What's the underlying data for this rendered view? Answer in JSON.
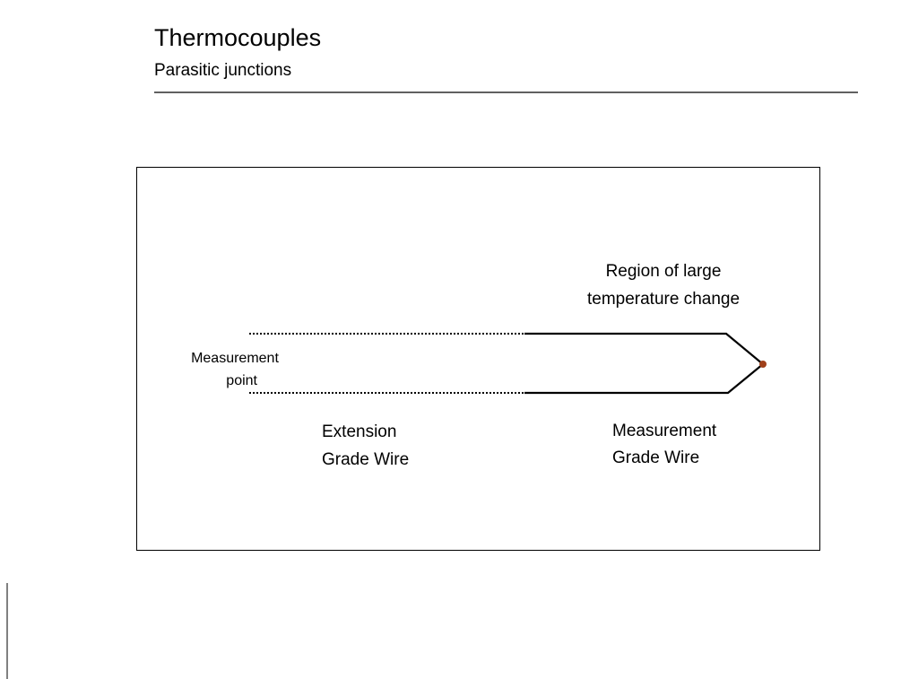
{
  "header": {
    "title": "Thermocouples",
    "subtitle": "Parasitic junctions"
  },
  "diagram": {
    "region_label": [
      "Region of large",
      "temperature change"
    ],
    "measurement_point_label": [
      "Measurement",
      "point"
    ],
    "extension_wire_label": [
      "Extension",
      "Grade Wire"
    ],
    "measurement_wire_label": [
      "Measurement",
      "Grade Wire"
    ]
  }
}
